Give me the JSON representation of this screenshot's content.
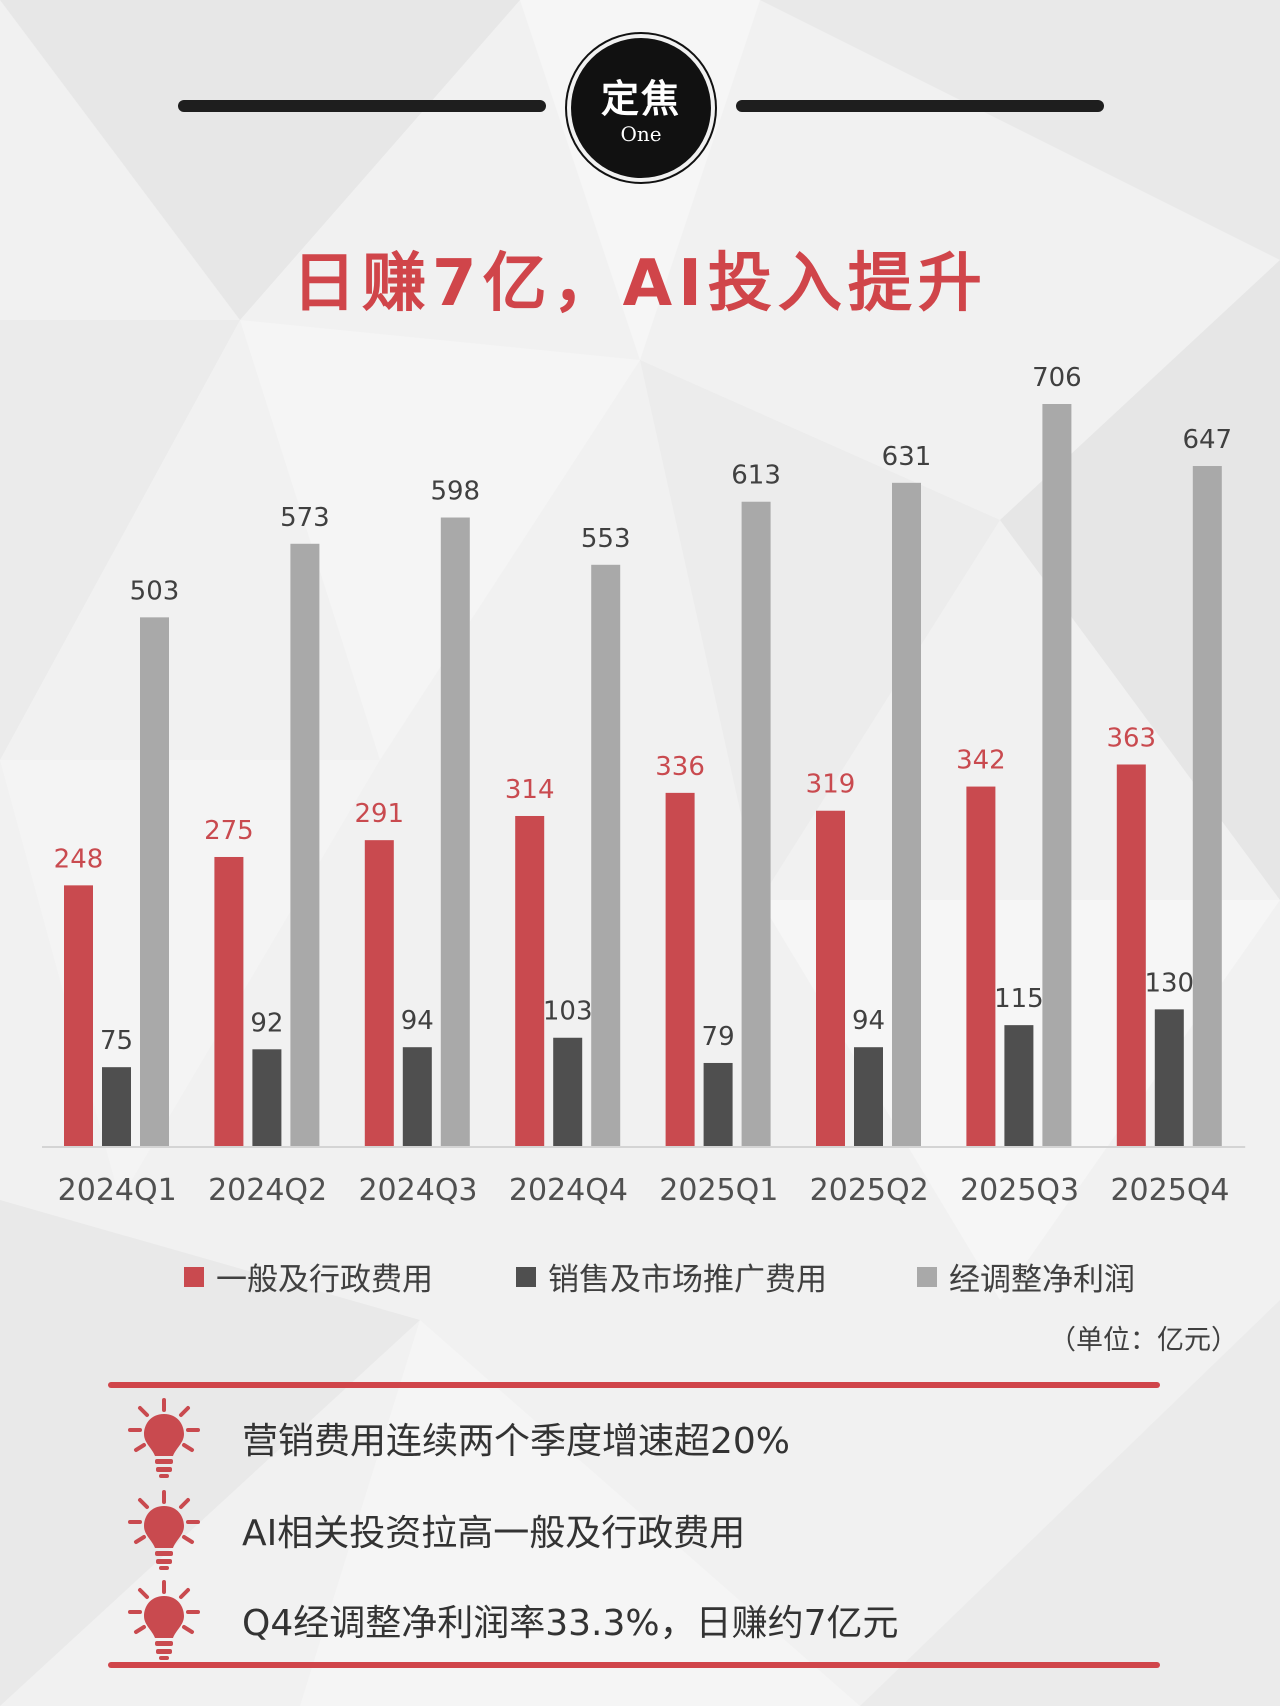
{
  "header": {
    "badge_main": "定焦",
    "badge_sub": "One",
    "title": "日赚7亿，AI投入提升"
  },
  "chart_data": {
    "type": "bar",
    "title": "",
    "xlabel": "",
    "ylabel": "",
    "categories": [
      "2024Q1",
      "2024Q2",
      "2024Q3",
      "2024Q4",
      "2025Q1",
      "2025Q2",
      "2025Q3",
      "2025Q4"
    ],
    "series": [
      {
        "name": "一般及行政费用",
        "color": "#c94a4f",
        "label_color": "#c94a4f",
        "values": [
          248,
          275,
          291,
          314,
          336,
          319,
          342,
          363
        ]
      },
      {
        "name": "销售及市场推广费用",
        "color": "#4f4f4f",
        "label_color": "#404040",
        "values": [
          75,
          92,
          94,
          103,
          79,
          94,
          115,
          130
        ]
      },
      {
        "name": "经调整净利润",
        "color": "#a9a9a9",
        "label_color": "#404040",
        "values": [
          503,
          573,
          598,
          553,
          613,
          631,
          706,
          647
        ]
      }
    ],
    "ylim": [
      0,
      706
    ],
    "grid": false,
    "legend_position": "bottom",
    "unit_note": "（单位：亿元）"
  },
  "notes": [
    {
      "icon": "lightbulb-icon",
      "text": "营销费用连续两个季度增速超20%"
    },
    {
      "icon": "lightbulb-icon",
      "text": "AI相关投资拉高一般及行政费用"
    },
    {
      "icon": "lightbulb-icon",
      "text": "Q4经调整净利润率33.3%，日赚约7亿元"
    }
  ],
  "colors": {
    "accent": "#d0454a",
    "dark": "#111111",
    "background": "#f1f1f1"
  }
}
